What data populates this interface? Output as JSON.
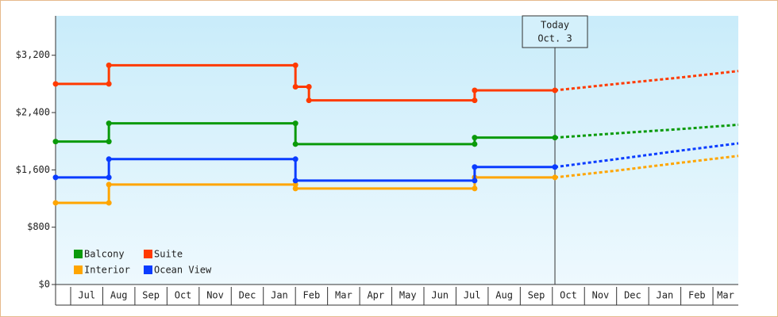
{
  "chart_data": {
    "type": "step-line",
    "xlim": [
      0.53,
      21.79
    ],
    "ylim": [
      0,
      3750
    ],
    "yticks": [
      {
        "value": 0,
        "label": "$0"
      },
      {
        "value": 800,
        "label": "$800"
      },
      {
        "value": 1600,
        "label": "$1,600"
      },
      {
        "value": 2400,
        "label": "$2,400"
      },
      {
        "value": 3200,
        "label": "$3,200"
      }
    ],
    "xticks": [
      {
        "value": 1.5,
        "label": "Jul"
      },
      {
        "value": 2.5,
        "label": "Aug"
      },
      {
        "value": 3.5,
        "label": "Sep"
      },
      {
        "value": 4.5,
        "label": "Oct"
      },
      {
        "value": 5.5,
        "label": "Nov"
      },
      {
        "value": 6.5,
        "label": "Dec"
      },
      {
        "value": 7.5,
        "label": "Jan"
      },
      {
        "value": 8.5,
        "label": "Feb"
      },
      {
        "value": 9.5,
        "label": "Mar"
      },
      {
        "value": 10.5,
        "label": "Apr"
      },
      {
        "value": 11.5,
        "label": "May"
      },
      {
        "value": 12.5,
        "label": "Jun"
      },
      {
        "value": 13.5,
        "label": "Jul"
      },
      {
        "value": 14.5,
        "label": "Aug"
      },
      {
        "value": 15.5,
        "label": "Sep"
      },
      {
        "value": 16.5,
        "label": "Oct"
      },
      {
        "value": 17.5,
        "label": "Nov"
      },
      {
        "value": 18.5,
        "label": "Dec"
      },
      {
        "value": 19.5,
        "label": "Jan"
      },
      {
        "value": 20.5,
        "label": "Feb"
      },
      {
        "value": 21.5,
        "label": "Mar"
      }
    ],
    "annotation": {
      "x": 16.08,
      "lines": [
        "Today",
        "Oct. 3"
      ]
    },
    "legend": "bottom-left",
    "series": [
      {
        "name": "Balcony",
        "color": "#0a9a0a",
        "x": [
          0.53,
          2.19,
          2.19,
          8.0,
          8.0,
          13.58,
          13.58,
          16.08
        ],
        "values": [
          1995,
          1995,
          2250,
          2250,
          1960,
          1960,
          2050,
          2050
        ],
        "forecast_x": [
          16.08,
          18,
          20,
          21.79
        ],
        "forecast_values": [
          2050,
          2110,
          2170,
          2230
        ]
      },
      {
        "name": "Suite",
        "color": "#ff3a00",
        "x": [
          0.53,
          2.19,
          2.19,
          8.0,
          8.0,
          8.42,
          8.42,
          13.58,
          13.58,
          16.08
        ],
        "values": [
          2800,
          2800,
          3060,
          3060,
          2760,
          2760,
          2570,
          2570,
          2710,
          2710
        ],
        "forecast_x": [
          16.08,
          18,
          20,
          21.79
        ],
        "forecast_values": [
          2710,
          2800,
          2890,
          2980
        ]
      },
      {
        "name": "Interior",
        "color": "#ffa500",
        "x": [
          0.53,
          2.19,
          2.19,
          8.0,
          8.0,
          13.58,
          13.58,
          16.08
        ],
        "values": [
          1140,
          1140,
          1395,
          1395,
          1340,
          1340,
          1495,
          1495
        ],
        "forecast_x": [
          16.08,
          18,
          20,
          21.79
        ],
        "forecast_values": [
          1495,
          1590,
          1700,
          1795
        ]
      },
      {
        "name": "Ocean View",
        "color": "#0a3cff",
        "x": [
          0.53,
          2.19,
          2.19,
          8.0,
          8.0,
          13.58,
          13.58,
          16.08
        ],
        "values": [
          1495,
          1495,
          1750,
          1750,
          1450,
          1450,
          1640,
          1640
        ],
        "forecast_x": [
          16.08,
          18,
          20,
          21.79
        ],
        "forecast_values": [
          1640,
          1750,
          1870,
          1970
        ]
      }
    ]
  }
}
